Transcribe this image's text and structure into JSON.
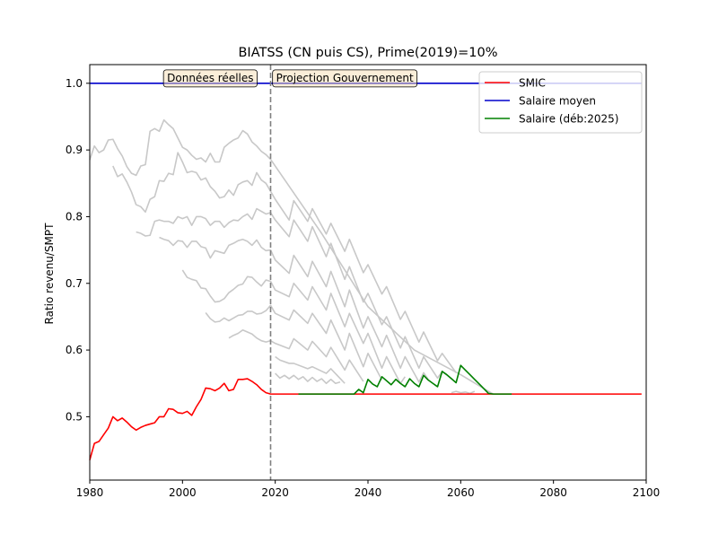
{
  "chart_data": {
    "type": "line",
    "title": "BIATSS (CN puis CS), Prime(2019)=10%",
    "xlabel": "",
    "ylabel": "Ratio revenu/SMPT",
    "xlim": [
      1980,
      2100
    ],
    "ylim": [
      0.405,
      1.028
    ],
    "xticks": [
      1980,
      2000,
      2020,
      2040,
      2060,
      2080,
      2100
    ],
    "yticks": [
      0.5,
      0.6,
      0.7,
      0.8,
      0.9,
      1.0
    ],
    "grid": false,
    "legend_position": "top-right",
    "vline": {
      "x": 2019,
      "color": "#808080",
      "style": "dashed"
    },
    "annotations": [
      {
        "text": "Données réelles",
        "x": 2006,
        "y": 1.008
      },
      {
        "text": "Projection Gouvernement",
        "x": 2035,
        "y": 1.008
      }
    ],
    "series": [
      {
        "name": "SMIC",
        "color": "#ff0000",
        "x": [
          1980,
          1981,
          1982,
          1983,
          1984,
          1985,
          1986,
          1987,
          1988,
          1989,
          1990,
          1991,
          1992,
          1993,
          1994,
          1995,
          1996,
          1997,
          1998,
          1999,
          2000,
          2001,
          2002,
          2003,
          2004,
          2005,
          2006,
          2007,
          2008,
          2009,
          2010,
          2011,
          2012,
          2013,
          2014,
          2015,
          2016,
          2017,
          2018,
          2019,
          2020,
          2030,
          2040,
          2050,
          2060,
          2070,
          2080,
          2090,
          2099
        ],
        "values": [
          0.435,
          0.46,
          0.463,
          0.473,
          0.483,
          0.5,
          0.494,
          0.498,
          0.492,
          0.485,
          0.48,
          0.484,
          0.487,
          0.489,
          0.491,
          0.5,
          0.5,
          0.512,
          0.511,
          0.506,
          0.505,
          0.508,
          0.502,
          0.515,
          0.526,
          0.543,
          0.542,
          0.539,
          0.543,
          0.55,
          0.539,
          0.541,
          0.556,
          0.556,
          0.557,
          0.553,
          0.548,
          0.541,
          0.536,
          0.534,
          0.534,
          0.534,
          0.534,
          0.534,
          0.534,
          0.534,
          0.534,
          0.534,
          0.534
        ]
      },
      {
        "name": "Salaire moyen",
        "color": "#0000cc",
        "x": [
          1980,
          2099
        ],
        "values": [
          1.0,
          1.0
        ]
      },
      {
        "name": "Salaire (déb:2025)",
        "color": "#008000",
        "x": [
          2025,
          2037,
          2038,
          2039,
          2040,
          2041,
          2042,
          2043,
          2044,
          2045,
          2046,
          2047,
          2048,
          2049,
          2050,
          2051,
          2052,
          2053,
          2054,
          2055,
          2056,
          2057,
          2058,
          2059,
          2060,
          2061,
          2062,
          2063,
          2064,
          2065,
          2066,
          2067,
          2071
        ],
        "values": [
          0.534,
          0.534,
          0.541,
          0.536,
          0.556,
          0.549,
          0.545,
          0.56,
          0.554,
          0.548,
          0.556,
          0.55,
          0.545,
          0.557,
          0.55,
          0.545,
          0.562,
          0.555,
          0.55,
          0.545,
          0.568,
          0.563,
          0.557,
          0.551,
          0.577,
          0.57,
          0.563,
          0.556,
          0.549,
          0.542,
          0.535,
          0.534,
          0.534
        ]
      },
      {
        "color": "#c8c8c8",
        "x": [
          1980,
          1981,
          1982,
          1983,
          1984,
          1985,
          1986,
          1987,
          1988,
          1989,
          1990,
          1991,
          1992,
          1993,
          1994,
          1995,
          1996,
          1997,
          1998,
          1999,
          2000,
          2001,
          2002,
          2003,
          2004,
          2005,
          2006,
          2007,
          2008,
          2009,
          2010,
          2011,
          2012,
          2013,
          2014,
          2015,
          2016,
          2017,
          2018,
          2019,
          2030,
          2040,
          2050,
          2060,
          2067
        ],
        "values": [
          0.885,
          0.906,
          0.896,
          0.9,
          0.915,
          0.916,
          0.902,
          0.891,
          0.875,
          0.865,
          0.862,
          0.876,
          0.878,
          0.928,
          0.932,
          0.928,
          0.945,
          0.938,
          0.932,
          0.918,
          0.904,
          0.9,
          0.892,
          0.886,
          0.888,
          0.882,
          0.895,
          0.882,
          0.882,
          0.904,
          0.91,
          0.915,
          0.918,
          0.929,
          0.924,
          0.912,
          0.906,
          0.898,
          0.893,
          0.886,
          0.775,
          0.665,
          0.6,
          0.563,
          0.534
        ]
      },
      {
        "color": "#c8c8c8",
        "x": [
          1985,
          1986,
          1987,
          1988,
          1989,
          1990,
          1991,
          1992,
          1993,
          1994,
          1995,
          1996,
          1997,
          1998,
          1999,
          2000,
          2001,
          2002,
          2003,
          2004,
          2005,
          2006,
          2007,
          2008,
          2009,
          2010,
          2011,
          2012,
          2013,
          2014,
          2015,
          2016,
          2017,
          2018,
          2019,
          2020,
          2023,
          2024,
          2027,
          2028,
          2031,
          2032,
          2035,
          2036,
          2039,
          2040,
          2043,
          2044,
          2047,
          2048,
          2051,
          2052,
          2055,
          2056,
          2059
        ],
        "values": [
          0.876,
          0.86,
          0.864,
          0.852,
          0.837,
          0.818,
          0.815,
          0.807,
          0.826,
          0.83,
          0.854,
          0.853,
          0.865,
          0.863,
          0.896,
          0.882,
          0.866,
          0.868,
          0.866,
          0.855,
          0.858,
          0.845,
          0.838,
          0.828,
          0.83,
          0.84,
          0.832,
          0.848,
          0.852,
          0.854,
          0.847,
          0.866,
          0.855,
          0.85,
          0.838,
          0.826,
          0.795,
          0.824,
          0.793,
          0.812,
          0.774,
          0.79,
          0.748,
          0.766,
          0.716,
          0.728,
          0.684,
          0.695,
          0.646,
          0.658,
          0.612,
          0.627,
          0.584,
          0.595,
          0.566
        ]
      },
      {
        "color": "#c8c8c8",
        "x": [
          1990,
          1991,
          1992,
          1993,
          1994,
          1995,
          1996,
          1997,
          1998,
          1999,
          2000,
          2001,
          2002,
          2003,
          2004,
          2005,
          2006,
          2007,
          2008,
          2009,
          2010,
          2011,
          2012,
          2013,
          2014,
          2015,
          2016,
          2017,
          2018,
          2019,
          2020,
          2023,
          2024,
          2027,
          2028,
          2031,
          2032,
          2035,
          2036,
          2039,
          2040,
          2043,
          2044,
          2047,
          2048,
          2051,
          2052,
          2055,
          2056,
          2058
        ],
        "values": [
          0.777,
          0.775,
          0.771,
          0.772,
          0.793,
          0.795,
          0.793,
          0.793,
          0.79,
          0.8,
          0.797,
          0.8,
          0.787,
          0.8,
          0.8,
          0.797,
          0.787,
          0.793,
          0.793,
          0.784,
          0.791,
          0.795,
          0.794,
          0.8,
          0.804,
          0.796,
          0.812,
          0.808,
          0.804,
          0.806,
          0.795,
          0.77,
          0.795,
          0.763,
          0.785,
          0.74,
          0.76,
          0.706,
          0.725,
          0.672,
          0.685,
          0.638,
          0.65,
          0.603,
          0.62,
          0.573,
          0.59,
          0.558,
          0.568,
          0.557
        ]
      },
      {
        "color": "#c8c8c8",
        "x": [
          1995,
          1996,
          1997,
          1998,
          1999,
          2000,
          2001,
          2002,
          2003,
          2004,
          2005,
          2006,
          2007,
          2008,
          2009,
          2010,
          2011,
          2012,
          2013,
          2014,
          2015,
          2016,
          2017,
          2018,
          2019,
          2020,
          2023,
          2024,
          2027,
          2028,
          2031,
          2032,
          2035,
          2036,
          2039,
          2040,
          2043,
          2044,
          2047,
          2048,
          2051,
          2052,
          2053
        ],
        "values": [
          0.769,
          0.766,
          0.764,
          0.757,
          0.764,
          0.763,
          0.754,
          0.763,
          0.763,
          0.755,
          0.753,
          0.738,
          0.749,
          0.747,
          0.745,
          0.757,
          0.76,
          0.764,
          0.766,
          0.763,
          0.757,
          0.765,
          0.754,
          0.749,
          0.75,
          0.735,
          0.715,
          0.742,
          0.71,
          0.733,
          0.695,
          0.718,
          0.665,
          0.69,
          0.633,
          0.65,
          0.605,
          0.622,
          0.573,
          0.59,
          0.552,
          0.566,
          0.556
        ]
      },
      {
        "color": "#c8c8c8",
        "x": [
          2000,
          2001,
          2002,
          2003,
          2004,
          2005,
          2006,
          2007,
          2008,
          2009,
          2010,
          2011,
          2012,
          2013,
          2014,
          2015,
          2016,
          2017,
          2018,
          2019,
          2020,
          2023,
          2024,
          2027,
          2028,
          2031,
          2032,
          2035,
          2036,
          2039,
          2040,
          2043,
          2044,
          2047,
          2048
        ],
        "values": [
          0.72,
          0.709,
          0.706,
          0.704,
          0.693,
          0.692,
          0.681,
          0.672,
          0.673,
          0.677,
          0.686,
          0.691,
          0.697,
          0.699,
          0.71,
          0.709,
          0.702,
          0.696,
          0.705,
          0.703,
          0.69,
          0.68,
          0.7,
          0.675,
          0.695,
          0.66,
          0.685,
          0.635,
          0.655,
          0.61,
          0.625,
          0.573,
          0.59,
          0.55,
          0.56
        ]
      },
      {
        "color": "#c8c8c8",
        "x": [
          2005,
          2006,
          2007,
          2008,
          2009,
          2010,
          2011,
          2012,
          2013,
          2014,
          2015,
          2016,
          2017,
          2018,
          2019,
          2020,
          2023,
          2024,
          2027,
          2028,
          2031,
          2032,
          2035,
          2036,
          2039,
          2040,
          2043
        ],
        "values": [
          0.656,
          0.647,
          0.642,
          0.643,
          0.648,
          0.644,
          0.648,
          0.652,
          0.653,
          0.658,
          0.658,
          0.654,
          0.655,
          0.659,
          0.667,
          0.655,
          0.645,
          0.66,
          0.64,
          0.655,
          0.625,
          0.645,
          0.6,
          0.625,
          0.575,
          0.595,
          0.555
        ]
      },
      {
        "color": "#c8c8c8",
        "x": [
          2010,
          2011,
          2012,
          2013,
          2014,
          2015,
          2016,
          2017,
          2018,
          2019,
          2020,
          2023,
          2024,
          2027,
          2028,
          2031,
          2032,
          2035,
          2036,
          2039
        ],
        "values": [
          0.618,
          0.622,
          0.625,
          0.63,
          0.627,
          0.624,
          0.618,
          0.614,
          0.612,
          0.614,
          0.61,
          0.602,
          0.617,
          0.6,
          0.613,
          0.59,
          0.604,
          0.57,
          0.585,
          0.553
        ]
      },
      {
        "color": "#c8c8c8",
        "x": [
          2020,
          2021,
          2023,
          2024,
          2027,
          2028,
          2031,
          2032,
          2035
        ],
        "values": [
          0.59,
          0.585,
          0.58,
          0.58,
          0.572,
          0.575,
          0.565,
          0.572,
          0.55
        ]
      },
      {
        "color": "#c8c8c8",
        "x": [
          2020,
          2021,
          2022,
          2023,
          2024,
          2025,
          2026,
          2027,
          2028,
          2029,
          2030,
          2031,
          2032,
          2033,
          2034
        ],
        "values": [
          0.565,
          0.558,
          0.562,
          0.557,
          0.562,
          0.556,
          0.56,
          0.553,
          0.559,
          0.553,
          0.557,
          0.55,
          0.556,
          0.55,
          0.552
        ]
      },
      {
        "color": "#c8c8c8",
        "x": [
          2058,
          2059,
          2060,
          2061,
          2062,
          2063
        ],
        "values": [
          0.536,
          0.538,
          0.536,
          0.537,
          0.535,
          0.538
        ]
      }
    ]
  }
}
